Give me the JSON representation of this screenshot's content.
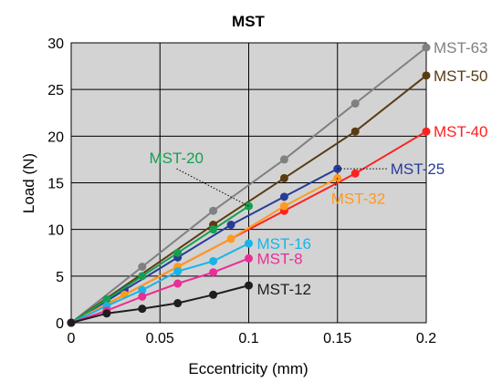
{
  "chart_data": {
    "type": "line",
    "title": "MST",
    "xlabel": "Eccentricity (mm)",
    "ylabel": "Load (N)",
    "xlim": [
      0,
      0.2
    ],
    "ylim": [
      0,
      30
    ],
    "xticks": [
      0,
      0.05,
      0.1,
      0.15,
      0.2
    ],
    "xtick_labels": [
      "0",
      "0.05",
      "0.1",
      "0.15",
      "0.2"
    ],
    "yticks": [
      0,
      5,
      10,
      15,
      20,
      25,
      30
    ],
    "ytick_labels": [
      "0",
      "5",
      "10",
      "15",
      "20",
      "25",
      "30"
    ],
    "grid": true,
    "plot_background": "#d3d3d3",
    "series": [
      {
        "name": "MST-63",
        "color": "#808080",
        "x": [
          0,
          0.04,
          0.08,
          0.12,
          0.16,
          0.2
        ],
        "y": [
          0,
          6,
          12,
          17.5,
          23.5,
          29.5
        ]
      },
      {
        "name": "MST-50",
        "color": "#5a3c14",
        "x": [
          0,
          0.08,
          0.12,
          0.16,
          0.2
        ],
        "y": [
          0,
          10.5,
          15.5,
          20.5,
          26.5
        ]
      },
      {
        "name": "MST-40",
        "color": "#ff2020",
        "x": [
          0,
          0.12,
          0.16,
          0.2
        ],
        "y": [
          0,
          12,
          16,
          20.5
        ]
      },
      {
        "name": "MST-25",
        "color": "#283c96",
        "x": [
          0,
          0.03,
          0.06,
          0.09,
          0.12,
          0.15
        ],
        "y": [
          0,
          3.5,
          7,
          10.5,
          13.5,
          16.5
        ]
      },
      {
        "name": "MST-32",
        "color": "#ff9a1e",
        "x": [
          0,
          0.03,
          0.06,
          0.09,
          0.12,
          0.15
        ],
        "y": [
          0,
          3,
          6,
          9,
          12.5,
          15.5
        ]
      },
      {
        "name": "MST-20",
        "color": "#14a050",
        "x": [
          0,
          0.02,
          0.04,
          0.06,
          0.08,
          0.1
        ],
        "y": [
          0,
          2.5,
          5,
          7.5,
          10,
          12.5
        ]
      },
      {
        "name": "MST-16",
        "color": "#19b4e6",
        "x": [
          0,
          0.02,
          0.04,
          0.06,
          0.08,
          0.1
        ],
        "y": [
          0,
          1.8,
          3.5,
          5.5,
          6.6,
          8.5
        ]
      },
      {
        "name": "MST-8",
        "color": "#eb2d96",
        "x": [
          0,
          0.02,
          0.04,
          0.06,
          0.08,
          0.1
        ],
        "y": [
          0,
          1.3,
          2.8,
          4.2,
          5.4,
          6.9
        ]
      },
      {
        "name": "MST-12",
        "color": "#1e1e1e",
        "x": [
          0,
          0.02,
          0.04,
          0.06,
          0.08,
          0.1
        ],
        "y": [
          0,
          1,
          1.5,
          2.1,
          3,
          4
        ]
      }
    ]
  }
}
